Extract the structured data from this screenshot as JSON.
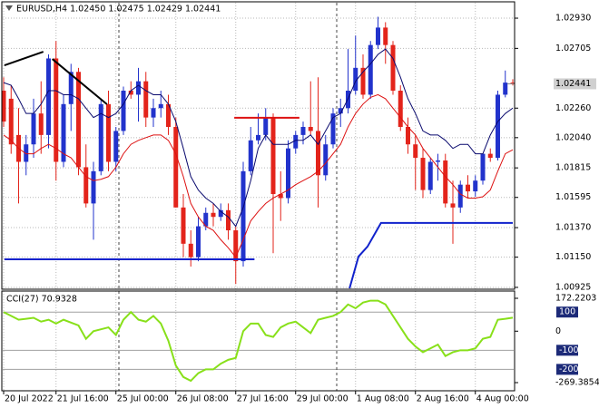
{
  "chart_data": [
    {
      "type": "candlestick",
      "title": "EURUSD,H4 1.02450 1.02475 1.02429 1.02441",
      "open": [
        1.0239,
        1.0233,
        1.0206,
        1.0186,
        1.0199,
        1.0222,
        1.0206,
        1.0263,
        1.0186,
        1.0229,
        1.0253,
        1.0182,
        1.0155,
        1.0179,
        1.0229,
        1.0186,
        1.0209,
        1.0239,
        1.0236,
        1.0246,
        1.0219,
        1.0226,
        1.0229,
        1.0212,
        1.0152,
        1.0125,
        1.0115,
        1.0138,
        1.0148,
        1.0145,
        1.015,
        1.0135,
        1.0112,
        1.0179,
        1.0202,
        1.0206,
        1.0219,
        1.0162,
        1.0159,
        1.0196,
        1.0206,
        1.0212,
        1.0209,
        1.0176,
        1.0199,
        1.0222,
        1.0226,
        1.0239,
        1.0256,
        1.0236,
        1.0273,
        1.0286,
        1.0273,
        1.0239,
        1.0212,
        1.0199,
        1.0189,
        1.0165,
        1.0186,
        1.0187,
        1.0155,
        1.0152,
        1.0169,
        1.0164,
        1.0172,
        1.0192,
        1.0189,
        1.0236,
        1.0245
      ],
      "high": [
        1.0249,
        1.0243,
        1.0226,
        1.0206,
        1.0233,
        1.0246,
        1.0266,
        1.0276,
        1.0236,
        1.0259,
        1.0256,
        1.0199,
        1.0186,
        1.0233,
        1.0239,
        1.0212,
        1.0242,
        1.0246,
        1.0256,
        1.0253,
        1.0233,
        1.0239,
        1.0236,
        1.0219,
        1.0162,
        1.0135,
        1.0145,
        1.0152,
        1.0155,
        1.0155,
        1.0155,
        1.0138,
        1.0186,
        1.0212,
        1.0222,
        1.0226,
        1.0222,
        1.0179,
        1.0202,
        1.0209,
        1.0216,
        1.0246,
        1.0249,
        1.0206,
        1.0226,
        1.0233,
        1.027,
        1.028,
        1.0266,
        1.0276,
        1.0294,
        1.029,
        1.0276,
        1.0243,
        1.0219,
        1.0206,
        1.0196,
        1.0189,
        1.0192,
        1.0192,
        1.0172,
        1.0172,
        1.0176,
        1.0176,
        1.0192,
        1.0196,
        1.0239,
        1.0254,
        1.02475
      ],
      "low": [
        1.0212,
        1.0192,
        1.0155,
        1.0176,
        1.0189,
        1.0192,
        1.0196,
        1.0172,
        1.0182,
        1.0209,
        1.0176,
        1.0152,
        1.0128,
        1.0176,
        1.0179,
        1.0179,
        1.0206,
        1.0233,
        1.0216,
        1.0212,
        1.0212,
        1.0219,
        1.0206,
        1.0152,
        1.0115,
        1.0108,
        1.0112,
        1.0135,
        1.0138,
        1.0142,
        1.0128,
        1.0095,
        1.0108,
        1.0176,
        1.0199,
        1.0202,
        1.0118,
        1.0142,
        1.0155,
        1.0192,
        1.0199,
        1.0206,
        1.0152,
        1.0172,
        1.0196,
        1.0212,
        1.0222,
        1.0236,
        1.0233,
        1.0233,
        1.027,
        1.0259,
        1.0236,
        1.0209,
        1.0192,
        1.0165,
        1.0159,
        1.0162,
        1.0172,
        1.0152,
        1.0125,
        1.0148,
        1.0159,
        1.016,
        1.0169,
        1.0186,
        1.0187,
        1.0234,
        1.02429
      ],
      "close": [
        1.0216,
        1.0199,
        1.0186,
        1.0199,
        1.0222,
        1.0206,
        1.0263,
        1.0186,
        1.0229,
        1.0253,
        1.0182,
        1.0155,
        1.0179,
        1.0229,
        1.0186,
        1.0209,
        1.0239,
        1.0236,
        1.0246,
        1.0219,
        1.0226,
        1.0229,
        1.0212,
        1.0152,
        1.0125,
        1.0115,
        1.0138,
        1.0148,
        1.0145,
        1.015,
        1.0135,
        1.0112,
        1.0179,
        1.0202,
        1.0206,
        1.0219,
        1.0162,
        1.0159,
        1.0196,
        1.0206,
        1.0212,
        1.0209,
        1.0176,
        1.0199,
        1.0222,
        1.0226,
        1.0239,
        1.0256,
        1.0236,
        1.0273,
        1.0286,
        1.0273,
        1.0239,
        1.0212,
        1.0199,
        1.0189,
        1.0165,
        1.0186,
        1.0187,
        1.0155,
        1.0152,
        1.0169,
        1.0164,
        1.0172,
        1.0192,
        1.0189,
        1.0236,
        1.0245,
        1.02441
      ],
      "up_color": "#2233cc",
      "down_color": "#e3241b",
      "series": [
        {
          "color": "#0a0a6e",
          "values": [
            1.0245,
            1.0243,
            1.0233,
            1.0222,
            1.0222,
            1.0229,
            1.0239,
            1.0239,
            1.0236,
            1.0236,
            1.0233,
            1.0226,
            1.0219,
            1.0222,
            1.0219,
            1.0222,
            1.0229,
            1.0239,
            1.0243,
            1.0239,
            1.0236,
            1.0236,
            1.0229,
            1.0216,
            1.0196,
            1.0175,
            1.0165,
            1.0159,
            1.0155,
            1.0149,
            1.0145,
            1.0138,
            1.0152,
            1.0172,
            1.0196,
            1.0206,
            1.0199,
            1.0199,
            1.0199,
            1.0202,
            1.0202,
            1.0206,
            1.0199,
            1.0209,
            1.0219,
            1.0222,
            1.0233,
            1.0246,
            1.0253,
            1.0259,
            1.0266,
            1.027,
            1.0263,
            1.0249,
            1.0233,
            1.0222,
            1.0209,
            1.0206,
            1.0206,
            1.0202,
            1.0196,
            1.0199,
            1.0199,
            1.0192,
            1.0192,
            1.0206,
            1.0216,
            1.0222,
            1.0226
          ]
        },
        {
          "color": "#dd1111",
          "values": [
            1.0206,
            1.0202,
            1.0196,
            1.0192,
            1.0192,
            1.0196,
            1.0199,
            1.0196,
            1.0192,
            1.0189,
            1.0182,
            1.0175,
            1.0172,
            1.0173,
            1.0175,
            1.0182,
            1.0192,
            1.0199,
            1.0202,
            1.0204,
            1.0206,
            1.0206,
            1.0202,
            1.0192,
            1.0175,
            1.0155,
            1.0145,
            1.0138,
            1.0135,
            1.0128,
            1.0122,
            1.0115,
            1.0128,
            1.0142,
            1.0149,
            1.0155,
            1.0159,
            1.0162,
            1.0165,
            1.0169,
            1.0172,
            1.0175,
            1.0179,
            1.0185,
            1.0192,
            1.0199,
            1.0212,
            1.0222,
            1.0229,
            1.0234,
            1.0236,
            1.0233,
            1.0226,
            1.0219,
            1.0212,
            1.0206,
            1.0196,
            1.0189,
            1.0182,
            1.0175,
            1.0169,
            1.0162,
            1.0159,
            1.0159,
            1.016,
            1.0165,
            1.0179,
            1.0192,
            1.0195
          ]
        }
      ],
      "objects": [
        {
          "color": "#000000",
          "bars": [
            0.1,
            5.3
          ],
          "prices": [
            1.02579,
            1.0268
          ]
        },
        {
          "color": "#000000",
          "bars": [
            6.5,
            13.8
          ],
          "prices": [
            1.02626,
            1.02289
          ]
        },
        {
          "color": "#1122cc",
          "bars": [
            0.1,
            33.5
          ],
          "prices": [
            1.01134,
            1.01134
          ]
        },
        {
          "color": "#dd1111",
          "bars": [
            30.8,
            39.5
          ],
          "prices": [
            1.02188,
            1.02188
          ]
        },
        {
          "color": "#1122cc",
          "bars": [
            46.2,
            47.4,
            48.6,
            50.4,
            68
          ],
          "prices": [
            1.00918,
            1.01155,
            1.01229,
            1.01405,
            1.01405
          ]
        }
      ],
      "last": 1.02441,
      "ylim": [
        1.00918,
        1.03045
      ],
      "yticks": [
        {
          "value": 1.0293,
          "label": "1.02930"
        },
        1.02705,
        {
          "value": 1.0226,
          "label": "1.02260"
        },
        {
          "value": 1.0204,
          "label": "1.02040"
        },
        1.01815,
        1.01595,
        {
          "value": 1.0137,
          "label": "1.01370"
        },
        {
          "value": 1.0115,
          "label": "1.01150"
        },
        1.00925
      ],
      "xticks": [
        {
          "value": 0,
          "label": "20 Jul 2022"
        },
        {
          "value": 7,
          "label": "21 Jul 16:00"
        },
        {
          "value": 15,
          "label": "25 Jul 00:00"
        },
        {
          "value": 23,
          "label": "26 Jul 08:00"
        },
        {
          "value": 31,
          "label": "27 Jul 16:00"
        },
        {
          "value": 39,
          "label": "29 Jul 00:00"
        },
        {
          "value": 47,
          "label": "1 Aug 08:00"
        },
        {
          "value": 55,
          "label": "2 Aug 16:00"
        },
        {
          "value": 63,
          "label": "4 Aug 00:00"
        }
      ],
      "grid": true
    },
    {
      "type": "line",
      "title": "CCI(27) 70.9328",
      "color": "#88e01a",
      "values": [
        100,
        80,
        60,
        65,
        70,
        50,
        60,
        40,
        60,
        45,
        30,
        -40,
        0,
        10,
        20,
        -20,
        60,
        100,
        60,
        50,
        80,
        40,
        -50,
        -180,
        -240,
        -260,
        -220,
        -200,
        -200,
        -170,
        -150,
        -140,
        0,
        40,
        40,
        -20,
        -30,
        20,
        40,
        50,
        20,
        -10,
        60,
        70,
        80,
        100,
        140,
        120,
        150,
        160,
        160,
        140,
        80,
        20,
        -40,
        -80,
        -110,
        -90,
        -70,
        -130,
        -110,
        -100,
        -100,
        -90,
        -40,
        -30,
        60,
        65,
        70.9328
      ],
      "ylim": [
        -269.3854,
        172.2203
      ],
      "yticks": [
        172.2203,
        0,
        -269.3854
      ],
      "levels": [
        100,
        -100,
        -200
      ]
    }
  ]
}
